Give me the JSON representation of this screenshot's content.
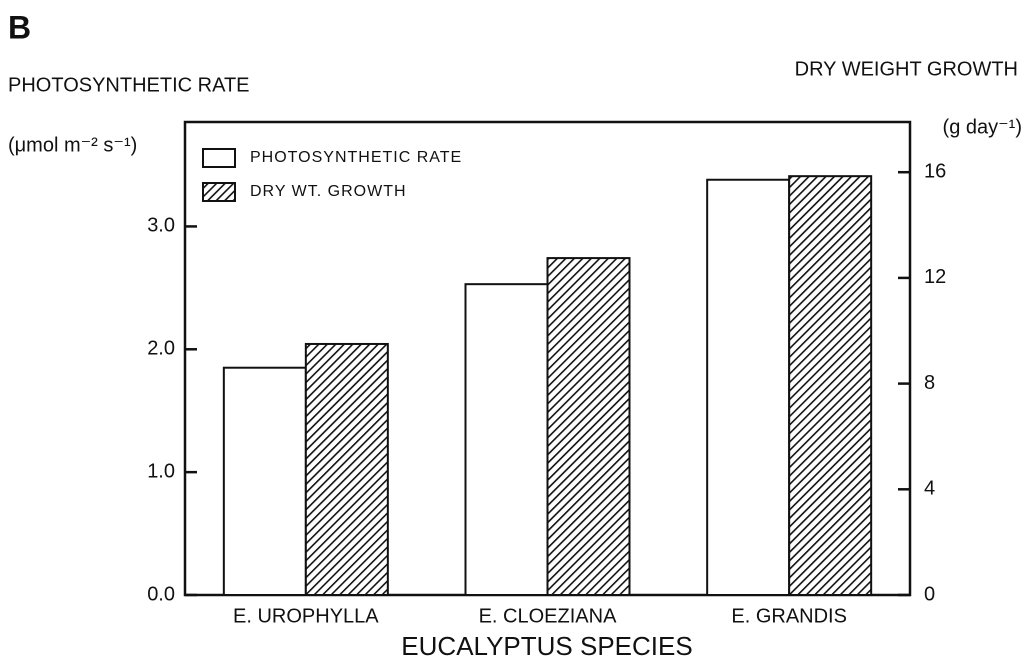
{
  "chart_data": {
    "type": "bar",
    "panel": "B",
    "ylabel": "PHOTOSYNTHETIC RATE",
    "yunit": "(μmol m⁻² s⁻¹)",
    "y2label": "DRY WEIGHT GROWTH",
    "y2unit": "(g day⁻¹)",
    "xlabel": "EUCALYPTUS SPECIES",
    "categories": [
      "E. UROPHYLLA",
      "E. CLOEZIANA",
      "E. GRANDIS"
    ],
    "series": [
      {
        "name": "PHOTOSYNTHETIC RATE",
        "color": "#ffffff",
        "values": [
          1.85,
          2.53,
          3.38
        ]
      },
      {
        "name": "DRY WT. GROWTH",
        "color": "hatched",
        "axis": "y2",
        "values": [
          9.5,
          12.75,
          15.85
        ]
      }
    ],
    "ylim": [
      0,
      3.85
    ],
    "yticks": [
      {
        "value": 0,
        "label": "0.0"
      },
      {
        "value": 1,
        "label": "1.0"
      },
      {
        "value": 2,
        "label": "2.0"
      },
      {
        "value": 3,
        "label": "3.0"
      }
    ],
    "y2lim": [
      0,
      17.9
    ],
    "y2ticks": [
      0,
      4,
      8,
      12,
      16
    ],
    "legend": "upper left"
  }
}
